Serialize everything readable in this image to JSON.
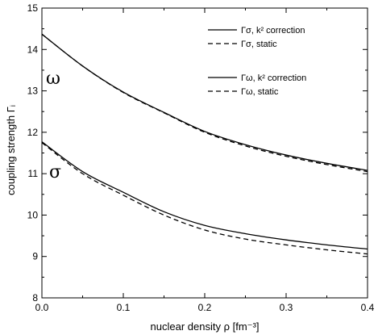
{
  "chart_data": {
    "type": "line",
    "xlabel": "nuclear density ρ [fm⁻³]",
    "ylabel": "coupling strength Γᵢ",
    "xlim": [
      0.0,
      0.4
    ],
    "ylim": [
      8,
      15
    ],
    "xticks": [
      "0.0",
      "0.1",
      "0.2",
      "0.3",
      "0.4"
    ],
    "yticks": [
      "8",
      "9",
      "10",
      "11",
      "12",
      "13",
      "14",
      "15"
    ],
    "grid": false,
    "legend_position": "top-right",
    "annotations": [
      "ω",
      "σ"
    ],
    "series": [
      {
        "name": "Γσ, k² correction",
        "style": "solid",
        "x": [
          0.0,
          0.05,
          0.1,
          0.15,
          0.2,
          0.25,
          0.3,
          0.35,
          0.4
        ],
        "y": [
          11.77,
          11.05,
          10.55,
          10.08,
          9.75,
          9.55,
          9.4,
          9.28,
          9.18
        ]
      },
      {
        "name": "Γσ, static",
        "style": "dashed",
        "x": [
          0.0,
          0.05,
          0.1,
          0.15,
          0.2,
          0.25,
          0.3,
          0.35,
          0.4
        ],
        "y": [
          11.75,
          11.0,
          10.48,
          10.0,
          9.64,
          9.42,
          9.28,
          9.16,
          9.06
        ]
      },
      {
        "name": "Γω, k² correction",
        "style": "solid",
        "x": [
          0.0,
          0.05,
          0.1,
          0.15,
          0.2,
          0.25,
          0.3,
          0.35,
          0.4
        ],
        "y": [
          14.37,
          13.6,
          12.97,
          12.48,
          12.02,
          11.7,
          11.45,
          11.25,
          11.08
        ]
      },
      {
        "name": "Γω, static",
        "style": "dashed",
        "x": [
          0.0,
          0.05,
          0.1,
          0.15,
          0.2,
          0.25,
          0.3,
          0.35,
          0.4
        ],
        "y": [
          14.37,
          13.6,
          12.96,
          12.47,
          12.0,
          11.67,
          11.42,
          11.22,
          11.05
        ]
      }
    ],
    "legend": [
      {
        "label": "Γσ, k² correction",
        "style": "solid"
      },
      {
        "label": "Γσ, static",
        "style": "dashed"
      },
      {
        "label": "Γω, k² correction",
        "style": "solid"
      },
      {
        "label": "Γω, static",
        "style": "dashed"
      }
    ]
  }
}
